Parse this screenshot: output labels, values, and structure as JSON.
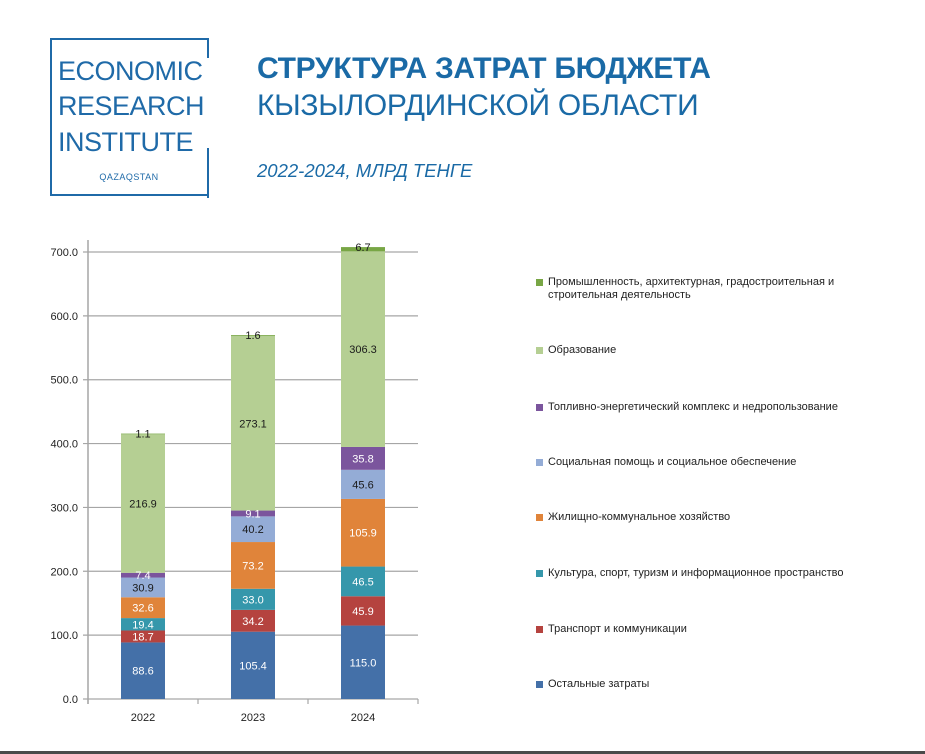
{
  "logo": {
    "lines": [
      "ECONOMIC",
      "RESEARCH",
      "INSTITUTE"
    ],
    "sub": "QAZAQSTAN"
  },
  "header": {
    "title_bold": "СТРУКТУРА ЗАТРАТ БЮДЖЕТА",
    "title_regular": "КЫЗЫЛОРДИНСКОЙ ОБЛАСТИ",
    "subtitle": "2022-2024, МЛРД ТЕНГЕ"
  },
  "chart_data": {
    "type": "bar",
    "stacked": true,
    "title": "СТРУКТУРА ЗАТРАТ БЮДЖЕТА КЫЗЫЛОРДИНСКОЙ ОБЛАСТИ",
    "subtitle": "2022-2024, МЛРД ТЕНГЕ",
    "xlabel": "",
    "ylabel": "",
    "ylim": [
      0,
      700
    ],
    "yticks": [
      "0.0",
      "100.0",
      "200.0",
      "300.0",
      "400.0",
      "500.0",
      "600.0",
      "700.0"
    ],
    "ytick_values": [
      0,
      100,
      200,
      300,
      400,
      500,
      600,
      700
    ],
    "grid": true,
    "legend_position": "right",
    "categories": [
      "2022",
      "2023",
      "2024"
    ],
    "series": [
      {
        "name": "Остальные затраты",
        "color": "#4470a8",
        "label_color": "#ffffff",
        "values": [
          88.6,
          105.4,
          115.0
        ],
        "labels": [
          "88.6",
          "105.4",
          "115.0"
        ]
      },
      {
        "name": "Транспорт и коммуникации",
        "color": "#b5433f",
        "label_color": "#ffffff",
        "values": [
          18.7,
          34.2,
          45.9
        ],
        "labels": [
          "18.7",
          "34.2",
          "45.9"
        ]
      },
      {
        "name": "Культура, спорт, туризм и информационное пространство",
        "color": "#3597ab",
        "label_color": "#ffffff",
        "values": [
          19.4,
          33.0,
          46.5
        ],
        "labels": [
          "19.4",
          "33.0",
          "46.5"
        ]
      },
      {
        "name": "Жилищно-коммунальное хозяйство",
        "color": "#e0843a",
        "label_color": "#ffffff",
        "values": [
          32.6,
          73.2,
          105.9
        ],
        "labels": [
          "32.6",
          "73.2",
          "105.9"
        ]
      },
      {
        "name": "Социальная помощь и социальное обеспечение",
        "color": "#94acd6",
        "label_color": "#1a1a1a",
        "values": [
          30.9,
          40.2,
          45.6
        ],
        "labels": [
          "30.9",
          "40.2",
          "45.6"
        ]
      },
      {
        "name": "Топливно-энергетический комплекс и недропользование",
        "color": "#7b559d",
        "label_color": "#ffffff",
        "values": [
          7.4,
          9.1,
          35.8
        ],
        "labels": [
          "7.4",
          "9.1",
          "35.8"
        ]
      },
      {
        "name": "Образование",
        "color": "#b5cf93",
        "label_color": "#1a1a1a",
        "values": [
          216.9,
          273.1,
          306.3
        ],
        "labels": [
          "216.9",
          "273.1",
          "306.3"
        ]
      },
      {
        "name": "Промышленность, архитектурная, градостроительная и строительная деятельность",
        "color": "#78a645",
        "label_color": "#1a1a1a",
        "values": [
          1.1,
          1.6,
          6.7
        ],
        "labels": [
          "1.1",
          "1.6",
          "6.7"
        ]
      }
    ],
    "legend": [
      "Промышленность, архитектурная, градостроительная и строительная деятельность",
      "Образование",
      "Топливно-энергетический комплекс и недропользование",
      "Социальная помощь и социальное обеспечение",
      "Жилищно-коммунальное хозяйство",
      "Культура, спорт, туризм и информационное пространство",
      "Транспорт и коммуникации",
      "Остальные затраты"
    ]
  }
}
